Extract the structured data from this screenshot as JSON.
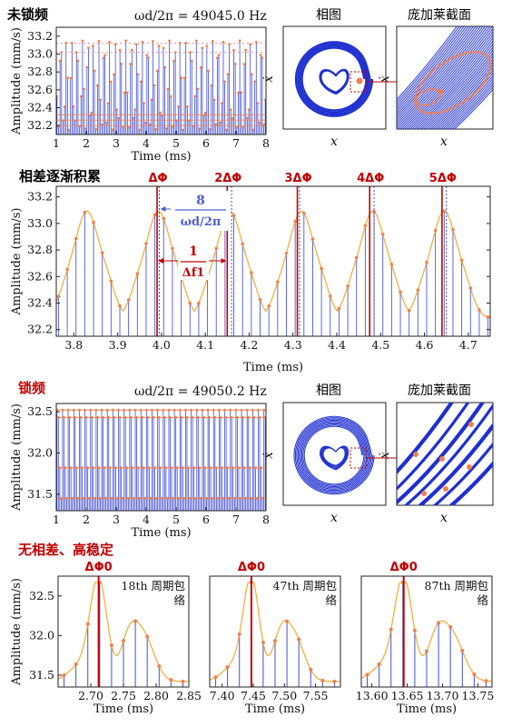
{
  "sections": {
    "unlocked": "未锁频",
    "phase_accum": "相差逐渐积累",
    "locked": "锁频",
    "stable": "无相差、高稳定"
  },
  "freq_unlocked": "ωd/2π = 49045.0 Hz",
  "freq_locked": "ωd/2π = 49050.2 Hz",
  "panel_titles": {
    "phase": "相图",
    "poincare": "庞加莱截面"
  },
  "phase_axes": {
    "x": "x",
    "y": "ẋ"
  },
  "annotations": {
    "phase_marks": [
      "ΔΦ",
      "2ΔΦ",
      "3ΔΦ",
      "4ΔΦ",
      "5ΔΦ"
    ],
    "period_num": "8",
    "period_den": "ωd/2π",
    "freq_num": "1",
    "freq_den": "Δf1",
    "phi0": "ΔΦ0",
    "envelopes": [
      "18th 周期包络",
      "47th 周期包络",
      "87th 周期包络"
    ]
  },
  "colors": {
    "red": "#c00000",
    "blue": "#1f2fd0",
    "orange": "#f08050",
    "envelope": "#f0b040"
  },
  "chart_data": [
    {
      "type": "scatter",
      "id": "unlocked-time",
      "xlabel": "Time (ms)",
      "ylabel": "Amplitude (mm/s)",
      "xlim": [
        1,
        8
      ],
      "ylim": [
        32.1,
        33.3
      ],
      "xticks": [
        "1",
        "2",
        "3",
        "4",
        "5",
        "6",
        "7",
        "8"
      ],
      "yticks": [
        "32.2",
        "32.4",
        "32.6",
        "32.8",
        "33.0",
        "33.2"
      ],
      "envelope_max": [
        33.1,
        33.2,
        33.1,
        33.2,
        33.1,
        33.2,
        33.1,
        33.2
      ],
      "envelope_min": [
        32.2,
        32.3,
        32.2,
        32.3,
        32.2,
        32.3,
        32.2,
        32.3
      ]
    },
    {
      "type": "line",
      "id": "phase-accum",
      "xlabel": "Time (ms)",
      "ylabel": "Amplitude (mm/s)",
      "xlim": [
        3.76,
        4.75
      ],
      "ylim": [
        32.15,
        33.28
      ],
      "xticks": [
        "3.8",
        "3.9",
        "4.0",
        "4.1",
        "4.2",
        "4.3",
        "4.4",
        "4.5",
        "4.6",
        "4.7"
      ],
      "yticks": [
        "32.2",
        "32.4",
        "32.6",
        "32.8",
        "33.0",
        "33.2"
      ],
      "peaks_x": [
        3.83,
        3.993,
        4.156,
        4.319,
        4.482,
        4.645
      ],
      "peak_y": 33.17,
      "trough_y": 32.27,
      "red_lines_x": [
        3.99,
        4.15,
        4.31,
        4.475,
        4.64
      ],
      "blue_lines_x": [
        3.995,
        4.16,
        4.315,
        4.485,
        4.65
      ]
    },
    {
      "type": "scatter",
      "id": "locked-time",
      "xlabel": "Time (ms)",
      "ylabel": "Amplitude (mm/s)",
      "xlim": [
        1,
        8
      ],
      "ylim": [
        31.3,
        32.6
      ],
      "xticks": [
        "1",
        "2",
        "3",
        "4",
        "5",
        "6",
        "7",
        "8"
      ],
      "yticks": [
        "31.5",
        "32.0",
        "32.5"
      ],
      "levels": [
        32.52,
        32.43,
        31.82,
        31.45
      ]
    },
    {
      "type": "line",
      "id": "period-18",
      "xlabel": "Time (ms)",
      "ylabel": "Amplitude (mm/s)",
      "xlim": [
        2.65,
        2.85
      ],
      "ylim": [
        31.35,
        32.75
      ],
      "xticks": [
        "2.70",
        "2.75",
        "2.80",
        "2.85"
      ],
      "yticks": [
        "31.5",
        "32.0",
        "32.5"
      ],
      "red_line_x": 2.712
    },
    {
      "type": "line",
      "id": "period-47",
      "xlabel": "Time (ms)",
      "ylabel": "",
      "xlim": [
        7.38,
        7.59
      ],
      "ylim": [
        31.35,
        32.75
      ],
      "xticks": [
        "7.40",
        "7.45",
        "7.50",
        "7.55"
      ],
      "yticks": [],
      "red_line_x": 7.447
    },
    {
      "type": "line",
      "id": "period-87",
      "xlabel": "Time (ms)",
      "ylabel": "",
      "xlim": [
        13.585,
        13.77
      ],
      "ylim": [
        31.35,
        32.75
      ],
      "xticks": [
        "13.60",
        "13.65",
        "13.70",
        "13.75"
      ],
      "yticks": [],
      "red_line_x": 13.645
    }
  ]
}
